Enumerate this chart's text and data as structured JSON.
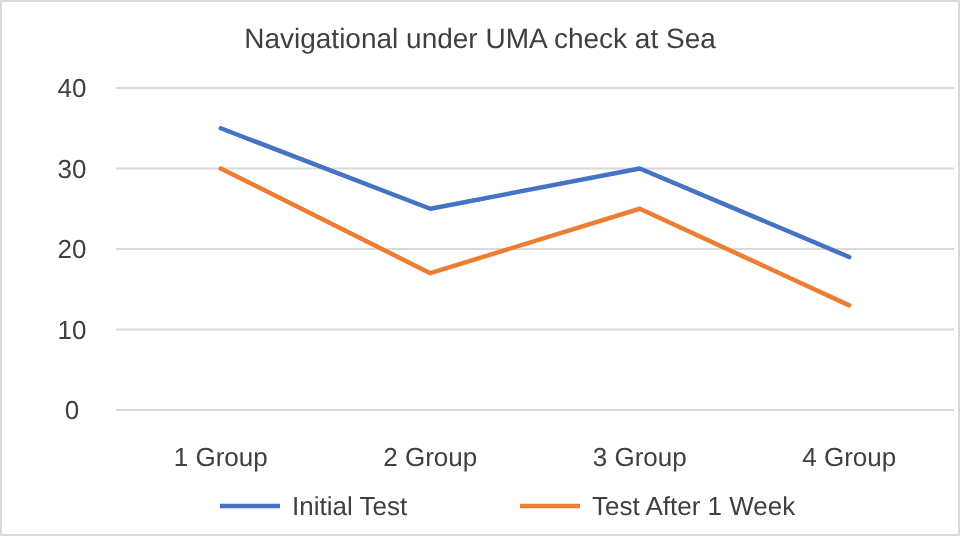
{
  "chart_data": {
    "type": "line",
    "title": "Navigational under UMA check at Sea",
    "categories": [
      "1 Group",
      "2 Group",
      "3 Group",
      "4 Group"
    ],
    "series": [
      {
        "name": "Initial Test",
        "color": "#4472c4",
        "values": [
          35,
          25,
          30,
          19
        ]
      },
      {
        "name": "Test After 1 Week",
        "color": "#ed7d31",
        "values": [
          30,
          17,
          25,
          13
        ]
      }
    ],
    "ylim": [
      0,
      40
    ],
    "yticks": [
      0,
      10,
      20,
      30,
      40
    ],
    "grid": "y",
    "legend": "bottom",
    "marker": "none",
    "line_style": "solid"
  }
}
